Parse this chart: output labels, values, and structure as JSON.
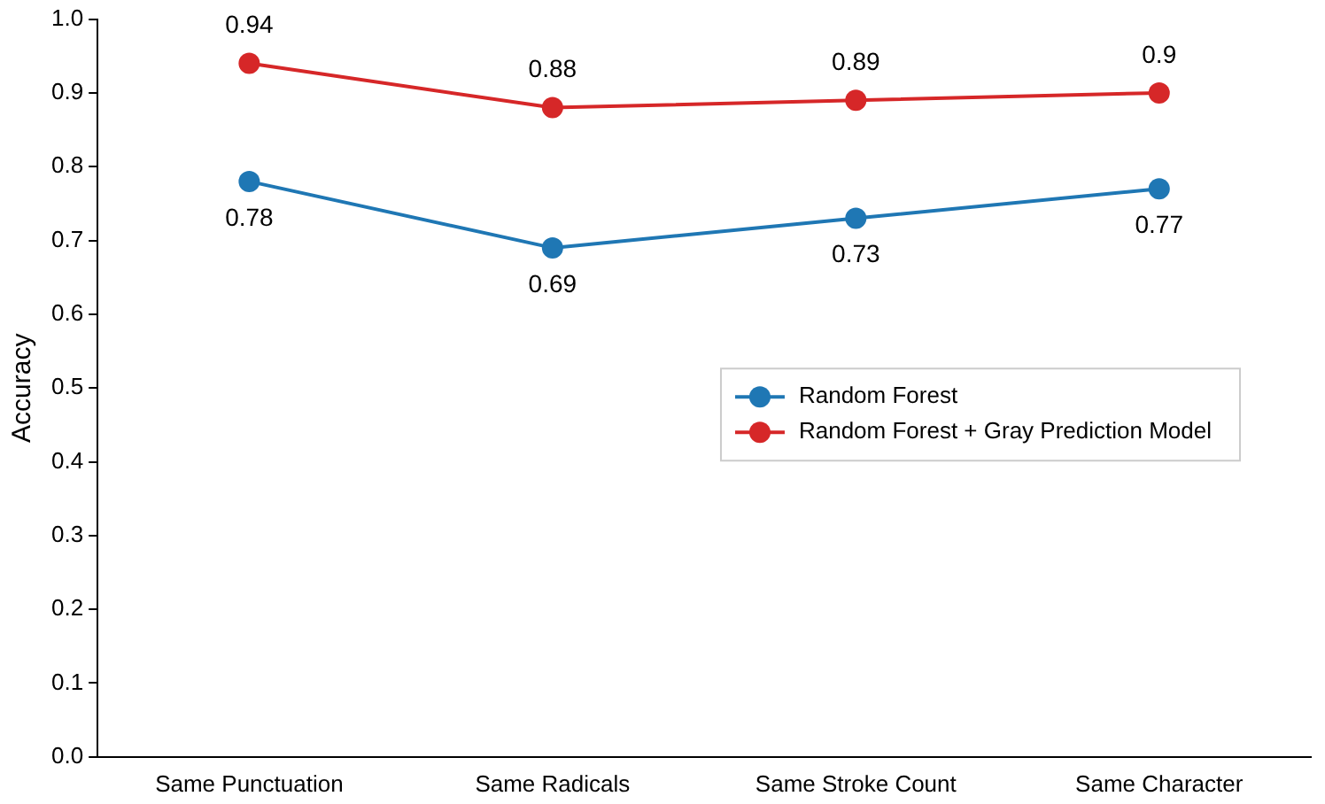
{
  "chart_data": {
    "type": "line",
    "ylabel": "Accuracy",
    "categories": [
      "Same Punctuation",
      "Same Radicals",
      "Same Stroke Count",
      "Same Character"
    ],
    "series": [
      {
        "name": "Random Forest",
        "color": "#1f77b4",
        "values": [
          0.78,
          0.69,
          0.73,
          0.77
        ]
      },
      {
        "name": "Random Forest + Gray Prediction Model",
        "color": "#d62728",
        "values": [
          0.94,
          0.88,
          0.89,
          0.9
        ]
      }
    ],
    "ylim": [
      0,
      1
    ],
    "yticks": [
      {
        "value": 0,
        "label": "0.0"
      },
      0.1,
      0.2,
      0.3,
      0.4,
      0.5,
      0.6,
      0.7,
      0.8,
      0.9,
      {
        "value": 1,
        "label": "1.0"
      }
    ],
    "grid": false,
    "legend": "right",
    "marker": "circle",
    "line_style": "solid",
    "data_labels": true
  }
}
